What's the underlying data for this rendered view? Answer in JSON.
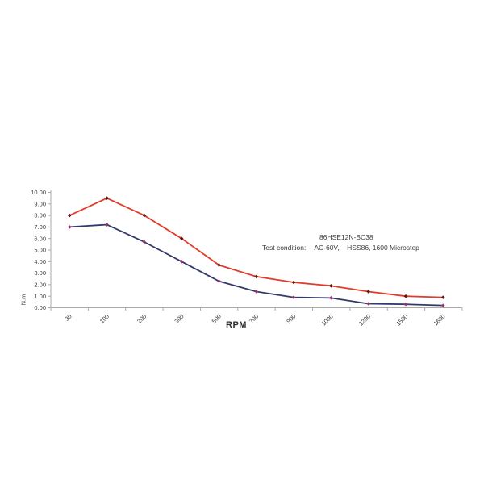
{
  "chart_data": {
    "type": "line",
    "title": "",
    "xlabel": "RPM",
    "ylabel": "N.m",
    "categories": [
      "30",
      "100",
      "200",
      "300",
      "500",
      "700",
      "900",
      "1000",
      "1200",
      "1500",
      "1600"
    ],
    "series": [
      {
        "name": "red-curve",
        "color": "#e23b2b",
        "marker_color": "#5a1a12",
        "values": [
          8.0,
          9.5,
          8.0,
          6.0,
          3.7,
          2.7,
          2.2,
          1.9,
          1.4,
          1.0,
          0.9
        ]
      },
      {
        "name": "navy-curve",
        "color": "#333a6b",
        "marker_color": "#993366",
        "values": [
          7.0,
          7.2,
          5.7,
          4.0,
          2.3,
          1.4,
          0.9,
          0.85,
          0.35,
          0.3,
          0.2
        ]
      }
    ],
    "ylim": [
      0,
      10
    ],
    "ytick_step": 1,
    "ytick_labels": [
      "0.00",
      "1.00",
      "2.00",
      "3.00",
      "4.00",
      "5.00",
      "6.00",
      "7.00",
      "8.00",
      "9.00",
      "10.00"
    ],
    "xtick_rotation": 45,
    "grid": false,
    "legend": "none",
    "axis_color": "#aaaaaa",
    "tick_text_color": "#3d3d3d",
    "annotation": {
      "model": "86HSE12N-BC38",
      "condition_label": "Test condition:",
      "condition_value": "AC-60V,    HSS86, 1600 Microstep"
    }
  }
}
